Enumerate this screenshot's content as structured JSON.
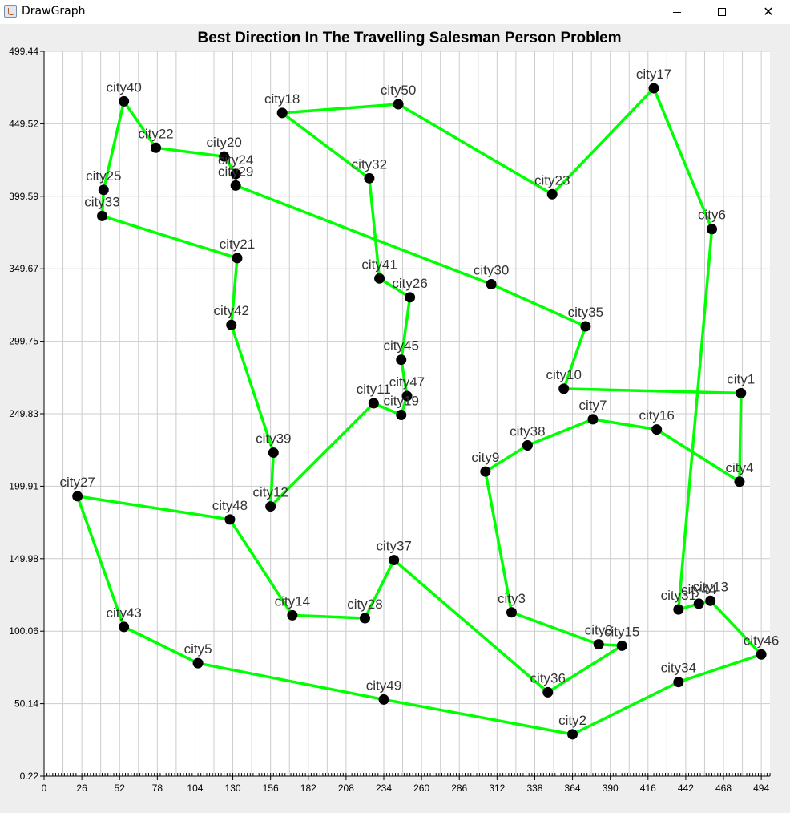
{
  "window": {
    "title": "DrawGraph",
    "minimize_icon": "minimize-icon",
    "maximize_icon": "maximize-icon",
    "close_icon": "close-icon",
    "close_glyph": "✕"
  },
  "colors": {
    "route": "#00ff00",
    "node": "#000000",
    "grid": "#cccccc",
    "label": "#333333",
    "plot_bg": "#ffffff",
    "window_bg": "#eeeeee"
  },
  "chart_data": {
    "type": "scatter",
    "title": "Best Direction In The Travelling Salesman Person Problem",
    "xlabel": "",
    "ylabel": "",
    "xlim": [
      0,
      500
    ],
    "ylim": [
      0.22,
      499.44
    ],
    "x_ticks": [
      "0",
      "26",
      "52",
      "78",
      "104",
      "130",
      "156",
      "182",
      "208",
      "234",
      "260",
      "286",
      "312",
      "338",
      "364",
      "390",
      "416",
      "442",
      "468",
      "494"
    ],
    "y_ticks": [
      "0.22",
      "50.14",
      "100.06",
      "149.98",
      "199.91",
      "249.83",
      "299.75",
      "349.67",
      "399.59",
      "449.52",
      "499.44"
    ],
    "grid": true,
    "points": [
      {
        "name": "city1",
        "x": 480,
        "y": 264
      },
      {
        "name": "city2",
        "x": 364,
        "y": 29
      },
      {
        "name": "city3",
        "x": 322,
        "y": 113
      },
      {
        "name": "city4",
        "x": 479,
        "y": 203
      },
      {
        "name": "city5",
        "x": 106,
        "y": 78
      },
      {
        "name": "city6",
        "x": 460,
        "y": 377
      },
      {
        "name": "city7",
        "x": 378,
        "y": 246
      },
      {
        "name": "city8",
        "x": 382,
        "y": 91
      },
      {
        "name": "city9",
        "x": 304,
        "y": 210
      },
      {
        "name": "city10",
        "x": 358,
        "y": 267
      },
      {
        "name": "city11",
        "x": 227,
        "y": 257
      },
      {
        "name": "city12",
        "x": 156,
        "y": 186
      },
      {
        "name": "city13",
        "x": 459,
        "y": 121
      },
      {
        "name": "city14",
        "x": 171,
        "y": 111
      },
      {
        "name": "city15",
        "x": 398,
        "y": 90
      },
      {
        "name": "city16",
        "x": 422,
        "y": 239
      },
      {
        "name": "city17",
        "x": 420,
        "y": 474
      },
      {
        "name": "city18",
        "x": 164,
        "y": 457
      },
      {
        "name": "city19",
        "x": 246,
        "y": 249
      },
      {
        "name": "city20",
        "x": 124,
        "y": 427
      },
      {
        "name": "city21",
        "x": 133,
        "y": 357
      },
      {
        "name": "city22",
        "x": 77,
        "y": 433
      },
      {
        "name": "city23",
        "x": 350,
        "y": 401
      },
      {
        "name": "city24",
        "x": 132,
        "y": 415
      },
      {
        "name": "city25",
        "x": 41,
        "y": 404
      },
      {
        "name": "city26",
        "x": 252,
        "y": 330
      },
      {
        "name": "city27",
        "x": 23,
        "y": 193
      },
      {
        "name": "city28",
        "x": 221,
        "y": 109
      },
      {
        "name": "city29",
        "x": 132,
        "y": 407
      },
      {
        "name": "city30",
        "x": 308,
        "y": 339
      },
      {
        "name": "city31",
        "x": 437,
        "y": 115
      },
      {
        "name": "city32",
        "x": 224,
        "y": 412
      },
      {
        "name": "city33",
        "x": 40,
        "y": 386
      },
      {
        "name": "city34",
        "x": 437,
        "y": 65
      },
      {
        "name": "city35",
        "x": 373,
        "y": 310
      },
      {
        "name": "city36",
        "x": 347,
        "y": 58
      },
      {
        "name": "city37",
        "x": 241,
        "y": 149
      },
      {
        "name": "city38",
        "x": 333,
        "y": 228
      },
      {
        "name": "city39",
        "x": 158,
        "y": 223
      },
      {
        "name": "city40",
        "x": 55,
        "y": 465
      },
      {
        "name": "city41",
        "x": 231,
        "y": 343
      },
      {
        "name": "city42",
        "x": 129,
        "y": 311
      },
      {
        "name": "city43",
        "x": 55,
        "y": 103
      },
      {
        "name": "city44",
        "x": 451,
        "y": 119
      },
      {
        "name": "city45",
        "x": 246,
        "y": 287
      },
      {
        "name": "city46",
        "x": 494,
        "y": 84
      },
      {
        "name": "city47",
        "x": 250,
        "y": 262
      },
      {
        "name": "city48",
        "x": 128,
        "y": 177
      },
      {
        "name": "city49",
        "x": 234,
        "y": 53
      },
      {
        "name": "city50",
        "x": 244,
        "y": 463
      }
    ],
    "route": [
      "city1",
      "city4",
      "city16",
      "city7",
      "city38",
      "city9",
      "city3",
      "city8",
      "city15",
      "city36",
      "city37",
      "city28",
      "city14",
      "city48",
      "city27",
      "city43",
      "city5",
      "city49",
      "city2",
      "city34",
      "city46",
      "city13",
      "city44",
      "city31",
      "city6",
      "city17",
      "city23",
      "city50",
      "city18",
      "city32",
      "city41",
      "city26",
      "city45",
      "city47",
      "city19",
      "city11",
      "city12",
      "city39",
      "city42",
      "city21",
      "city33",
      "city25",
      "city40",
      "city22",
      "city20",
      "city24",
      "city29",
      "city30",
      "city35",
      "city10",
      "city1"
    ]
  }
}
